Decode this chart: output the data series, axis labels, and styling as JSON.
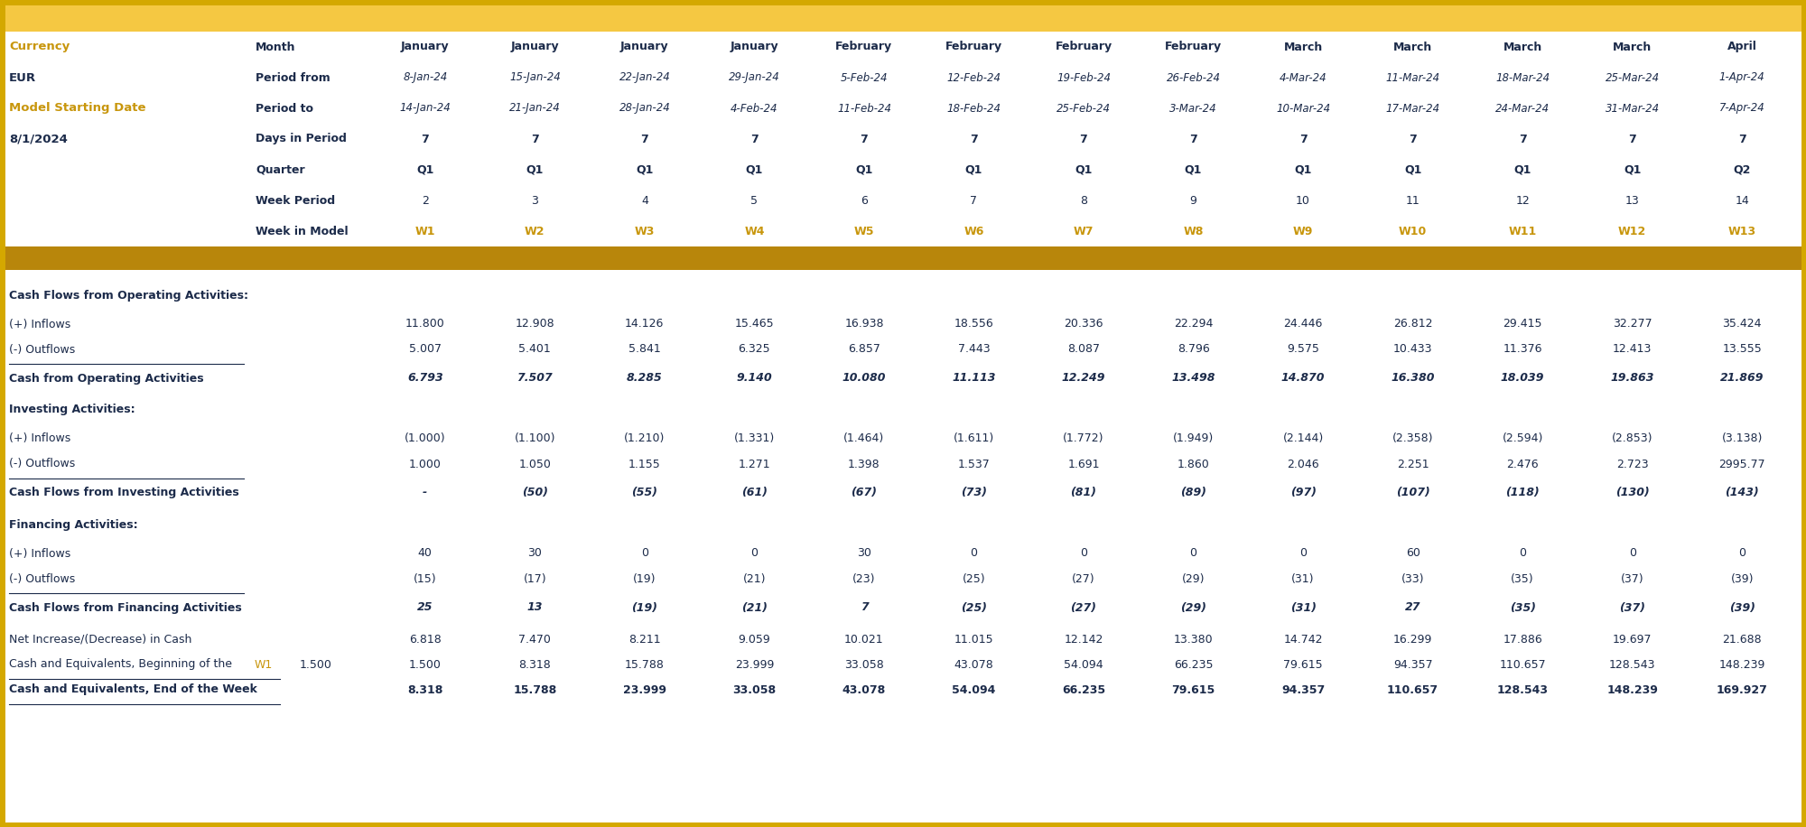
{
  "header_bg_color": "#F5C842",
  "dark_gold_bar_color": "#B8860B",
  "white_bg": "#FFFFFF",
  "gold_text": "#C8960C",
  "dark_text": "#1C2B4A",
  "outer_border_color": "#DAA520",
  "header_row_labels": [
    "Month",
    "Period from",
    "Period to",
    "Days in Period",
    "Quarter",
    "Week Period",
    "Week in Model"
  ],
  "col_months": [
    "January",
    "January",
    "January",
    "January",
    "February",
    "February",
    "February",
    "February",
    "March",
    "March",
    "March",
    "March",
    "April"
  ],
  "col_period_from": [
    "8-Jan-24",
    "15-Jan-24",
    "22-Jan-24",
    "29-Jan-24",
    "5-Feb-24",
    "12-Feb-24",
    "19-Feb-24",
    "26-Feb-24",
    "4-Mar-24",
    "11-Mar-24",
    "18-Mar-24",
    "25-Mar-24",
    "1-Apr-24"
  ],
  "col_period_to": [
    "14-Jan-24",
    "21-Jan-24",
    "28-Jan-24",
    "4-Feb-24",
    "11-Feb-24",
    "18-Feb-24",
    "25-Feb-24",
    "3-Mar-24",
    "10-Mar-24",
    "17-Mar-24",
    "24-Mar-24",
    "31-Mar-24",
    "7-Apr-24"
  ],
  "col_days": [
    "7",
    "7",
    "7",
    "7",
    "7",
    "7",
    "7",
    "7",
    "7",
    "7",
    "7",
    "7",
    "7"
  ],
  "col_quarter": [
    "Q1",
    "Q1",
    "Q1",
    "Q1",
    "Q1",
    "Q1",
    "Q1",
    "Q1",
    "Q1",
    "Q1",
    "Q1",
    "Q1",
    "Q2"
  ],
  "col_week_period": [
    "2",
    "3",
    "4",
    "5",
    "6",
    "7",
    "8",
    "9",
    "10",
    "11",
    "12",
    "13",
    "14"
  ],
  "col_week_model": [
    "W1",
    "W2",
    "W3",
    "W4",
    "W5",
    "W6",
    "W7",
    "W8",
    "W9",
    "W10",
    "W11",
    "W12",
    "W13"
  ],
  "op_inflows": [
    "11.800",
    "12.908",
    "14.126",
    "15.465",
    "16.938",
    "18.556",
    "20.336",
    "22.294",
    "24.446",
    "26.812",
    "29.415",
    "32.277",
    "35.424"
  ],
  "op_outflows": [
    "5.007",
    "5.401",
    "5.841",
    "6.325",
    "6.857",
    "7.443",
    "8.087",
    "8.796",
    "9.575",
    "10.433",
    "11.376",
    "12.413",
    "13.555"
  ],
  "op_cash": [
    "6.793",
    "7.507",
    "8.285",
    "9.140",
    "10.080",
    "11.113",
    "12.249",
    "13.498",
    "14.870",
    "16.380",
    "18.039",
    "19.863",
    "21.869"
  ],
  "inv_inflows": [
    "(1.000)",
    "(1.100)",
    "(1.210)",
    "(1.331)",
    "(1.464)",
    "(1.611)",
    "(1.772)",
    "(1.949)",
    "(2.144)",
    "(2.358)",
    "(2.594)",
    "(2.853)",
    "(3.138)"
  ],
  "inv_outflows": [
    "1.000",
    "1.050",
    "1.155",
    "1.271",
    "1.398",
    "1.537",
    "1.691",
    "1.860",
    "2.046",
    "2.251",
    "2.476",
    "2.723",
    "2995.77"
  ],
  "inv_cash": [
    "-",
    "(50)",
    "(55)",
    "(61)",
    "(67)",
    "(73)",
    "(81)",
    "(89)",
    "(97)",
    "(107)",
    "(118)",
    "(130)",
    "(143)"
  ],
  "fin_inflows": [
    "40",
    "30",
    "0",
    "0",
    "30",
    "0",
    "0",
    "0",
    "0",
    "60",
    "0",
    "0",
    "0"
  ],
  "fin_outflows": [
    "(15)",
    "(17)",
    "(19)",
    "(21)",
    "(23)",
    "(25)",
    "(27)",
    "(29)",
    "(31)",
    "(33)",
    "(35)",
    "(37)",
    "(39)"
  ],
  "fin_cash": [
    "25",
    "13",
    "(19)",
    "(21)",
    "7",
    "(25)",
    "(27)",
    "(29)",
    "(31)",
    "27",
    "(35)",
    "(37)",
    "(39)"
  ],
  "net_increase": [
    "6.818",
    "7.470",
    "8.211",
    "9.059",
    "10.021",
    "11.015",
    "12.142",
    "13.380",
    "14.742",
    "16.299",
    "17.886",
    "19.697",
    "21.688"
  ],
  "beg_cash": [
    "1.500",
    "8.318",
    "15.788",
    "23.999",
    "33.058",
    "43.078",
    "54.094",
    "66.235",
    "79.615",
    "94.357",
    "110.657",
    "128.543",
    "148.239"
  ],
  "end_cash": [
    "8.318",
    "15.788",
    "23.999",
    "33.058",
    "43.078",
    "54.094",
    "66.235",
    "79.615",
    "94.357",
    "110.657",
    "128.543",
    "148.239",
    "169.927"
  ],
  "beg_cash_initial": "1.500"
}
